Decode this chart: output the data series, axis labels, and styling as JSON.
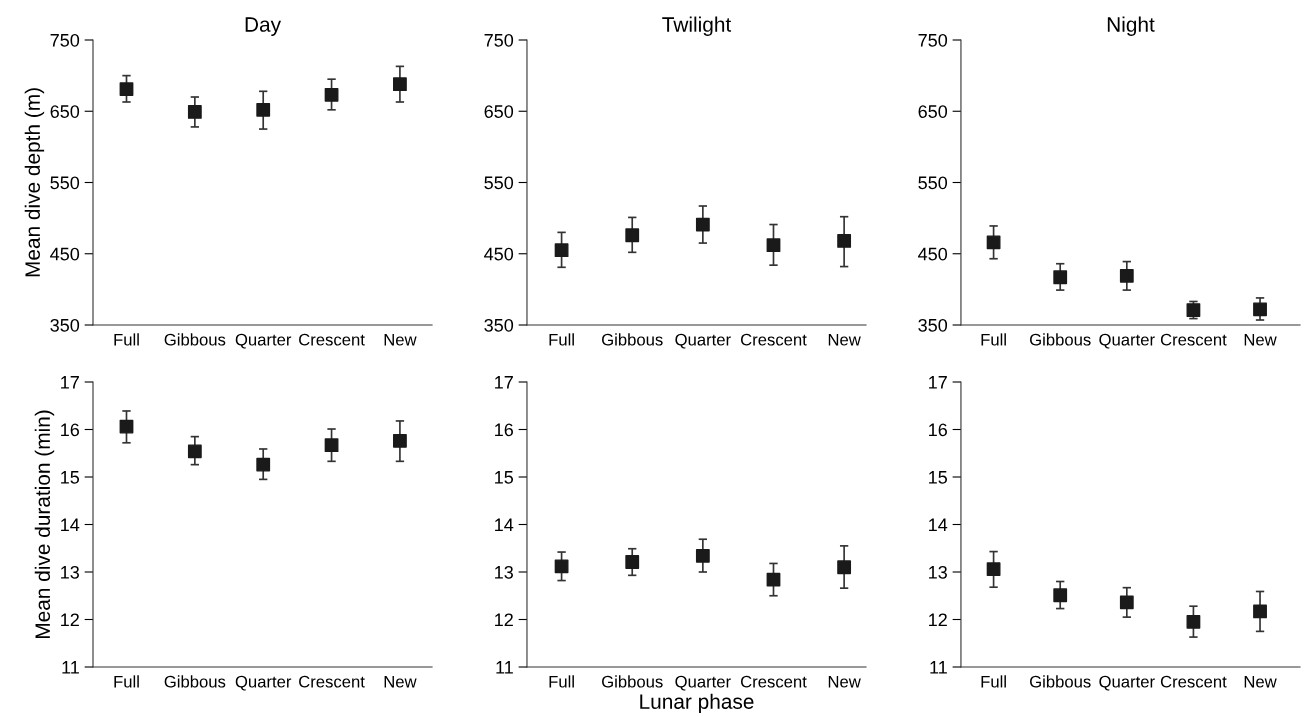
{
  "chart_data": [
    {
      "type": "scatter",
      "title": "Day",
      "ylabel": "Mean dive depth (m)",
      "categories": [
        "Full",
        "Gibbous",
        "Quarter",
        "Crescent",
        "New"
      ],
      "color": "#1a1a1a",
      "marker": "square",
      "values": [
        681,
        649,
        652,
        673,
        688
      ],
      "errors": [
        [
          663,
          700
        ],
        [
          628,
          670
        ],
        [
          625,
          678
        ],
        [
          652,
          695
        ],
        [
          663,
          713
        ]
      ],
      "ylim": [
        350,
        750
      ],
      "yticks": [
        350,
        450,
        550,
        650,
        750
      ]
    },
    {
      "type": "scatter",
      "title": "Twilight",
      "categories": [
        "Full",
        "Gibbous",
        "Quarter",
        "Crescent",
        "New"
      ],
      "color": "#1a1a1a",
      "marker": "square",
      "values": [
        455,
        476,
        491,
        462,
        468
      ],
      "errors": [
        [
          431,
          480
        ],
        [
          452,
          501
        ],
        [
          465,
          517
        ],
        [
          434,
          491
        ],
        [
          432,
          502
        ]
      ],
      "ylim": [
        350,
        750
      ],
      "yticks": [
        350,
        450,
        550,
        650,
        750
      ]
    },
    {
      "type": "scatter",
      "title": "Night",
      "categories": [
        "Full",
        "Gibbous",
        "Quarter",
        "Crescent",
        "New"
      ],
      "color": "#1a1a1a",
      "marker": "square",
      "values": [
        466,
        417,
        419,
        371,
        372
      ],
      "errors": [
        [
          443,
          489
        ],
        [
          399,
          436
        ],
        [
          399,
          439
        ],
        [
          359,
          383
        ],
        [
          357,
          388
        ]
      ],
      "ylim": [
        350,
        750
      ],
      "yticks": [
        350,
        450,
        550,
        650,
        750
      ]
    },
    {
      "type": "scatter",
      "ylabel": "Mean dive duration (min)",
      "categories": [
        "Full",
        "Gibbous",
        "Quarter",
        "Crescent",
        "New"
      ],
      "color": "#1a1a1a",
      "marker": "square",
      "values": [
        16.06,
        15.54,
        15.26,
        15.67,
        15.76
      ],
      "errors": [
        [
          15.72,
          16.39
        ],
        [
          15.26,
          15.85
        ],
        [
          14.95,
          15.59
        ],
        [
          15.33,
          16.01
        ],
        [
          15.33,
          16.18
        ]
      ],
      "ylim": [
        11,
        17
      ],
      "yticks": [
        11,
        12,
        13,
        14,
        15,
        16,
        17
      ]
    },
    {
      "type": "scatter",
      "xlabel": "Lunar phase",
      "categories": [
        "Full",
        "Gibbous",
        "Quarter",
        "Crescent",
        "New"
      ],
      "color": "#1a1a1a",
      "marker": "square",
      "values": [
        13.12,
        13.21,
        13.34,
        12.84,
        13.1
      ],
      "errors": [
        [
          12.82,
          13.42
        ],
        [
          12.93,
          13.49
        ],
        [
          13.0,
          13.69
        ],
        [
          12.5,
          13.18
        ],
        [
          12.66,
          13.55
        ]
      ],
      "ylim": [
        11,
        17
      ],
      "yticks": [
        11,
        12,
        13,
        14,
        15,
        16,
        17
      ]
    },
    {
      "type": "scatter",
      "categories": [
        "Full",
        "Gibbous",
        "Quarter",
        "Crescent",
        "New"
      ],
      "color": "#1a1a1a",
      "marker": "square",
      "values": [
        13.06,
        12.51,
        12.36,
        11.95,
        12.17
      ],
      "errors": [
        [
          12.68,
          13.43
        ],
        [
          12.23,
          12.8
        ],
        [
          12.05,
          12.67
        ],
        [
          11.63,
          12.28
        ],
        [
          11.75,
          12.59
        ]
      ],
      "ylim": [
        11,
        17
      ],
      "yticks": [
        11,
        12,
        13,
        14,
        15,
        16,
        17
      ]
    }
  ]
}
